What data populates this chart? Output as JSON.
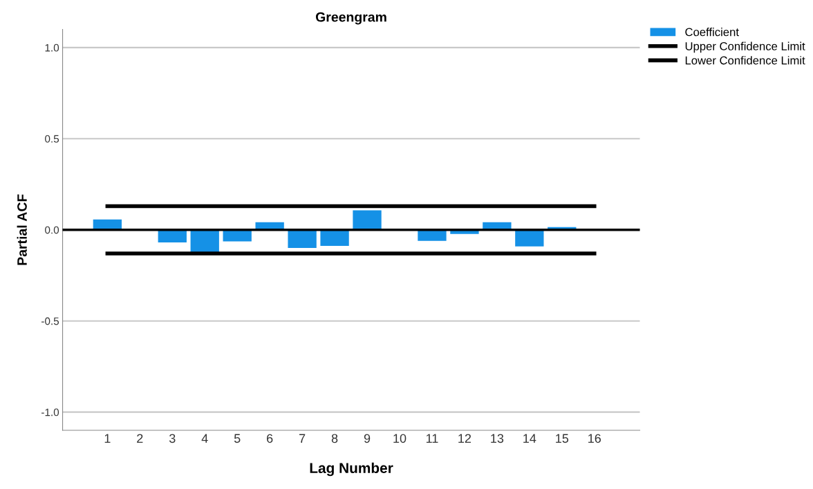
{
  "chart_data": {
    "type": "bar",
    "title": "Greengram",
    "xlabel": "Lag Number",
    "ylabel": "Partial ACF",
    "categories": [
      "1",
      "2",
      "3",
      "4",
      "5",
      "6",
      "7",
      "8",
      "9",
      "10",
      "11",
      "12",
      "13",
      "14",
      "15",
      "16"
    ],
    "series": [
      {
        "name": "Coefficient",
        "color": "#1591e6",
        "values": [
          0.057,
          0.0,
          -0.069,
          -0.122,
          -0.063,
          0.042,
          -0.099,
          -0.088,
          0.107,
          0.0,
          -0.061,
          -0.023,
          0.042,
          -0.091,
          0.015,
          0.0
        ]
      },
      {
        "name": "Upper Confidence Limit",
        "type": "line",
        "color": "#000000",
        "values": [
          0.13,
          0.13,
          0.13,
          0.13,
          0.13,
          0.13,
          0.13,
          0.13,
          0.13,
          0.13,
          0.13,
          0.13,
          0.13,
          0.13,
          0.13,
          0.13
        ]
      },
      {
        "name": "Lower Confidence Limit",
        "type": "line",
        "color": "#000000",
        "values": [
          -0.13,
          -0.13,
          -0.13,
          -0.13,
          -0.13,
          -0.13,
          -0.13,
          -0.13,
          -0.13,
          -0.13,
          -0.13,
          -0.13,
          -0.13,
          -0.13,
          -0.13,
          -0.13
        ]
      }
    ],
    "ref_lines": [
      {
        "axis": "y",
        "value": 0,
        "color": "#000000"
      }
    ],
    "ylim": [
      -1.1,
      1.1
    ],
    "yticks": [
      {
        "value": -1.0,
        "label": "-1.0"
      },
      {
        "value": -0.5,
        "label": "-0.5"
      },
      {
        "value": 0.0,
        "label": "0.0"
      },
      {
        "value": 0.5,
        "label": "0.5"
      },
      {
        "value": 1.0,
        "label": "1.0"
      }
    ],
    "grid": "y",
    "legend": "top right",
    "marker": "none",
    "line_style": "solid"
  }
}
